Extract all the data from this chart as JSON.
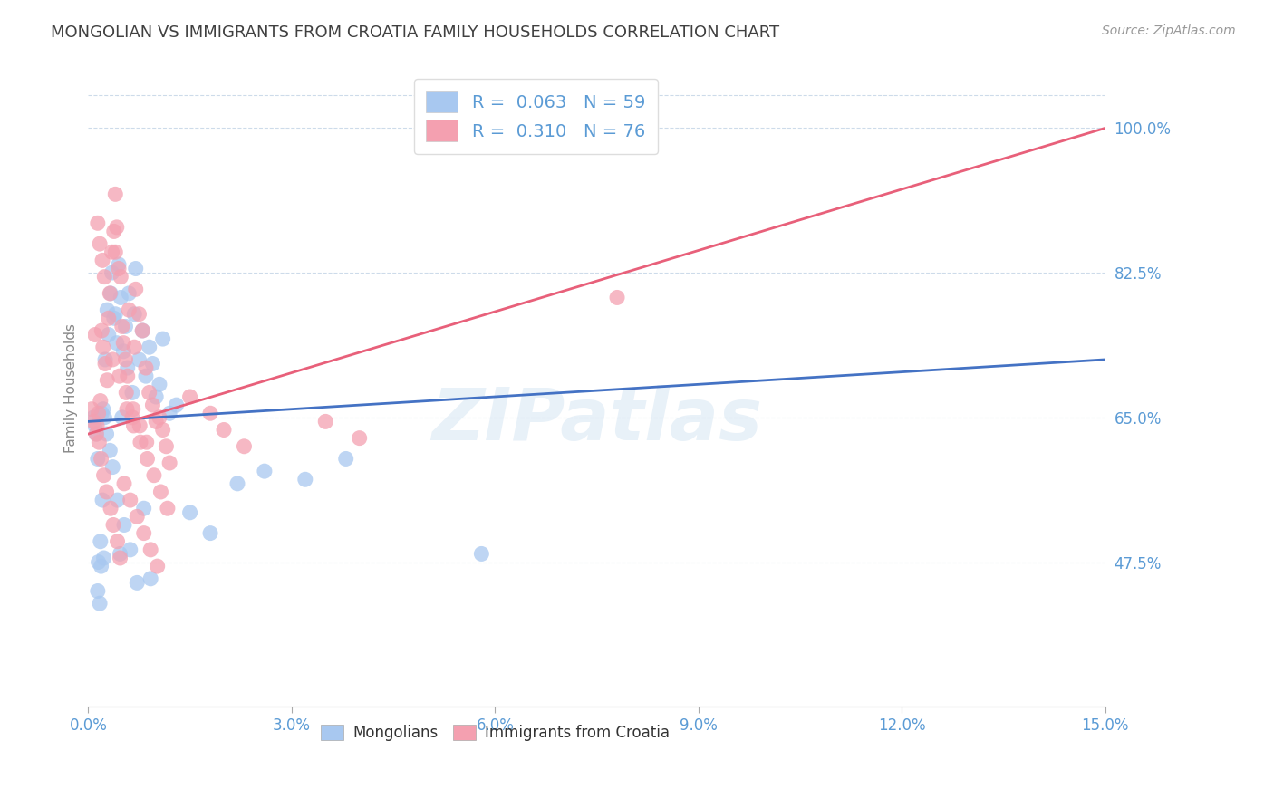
{
  "title": "MONGOLIAN VS IMMIGRANTS FROM CROATIA FAMILY HOUSEHOLDS CORRELATION CHART",
  "source": "Source: ZipAtlas.com",
  "ylabel": "Family Households",
  "yticks": [
    47.5,
    65.0,
    82.5,
    100.0
  ],
  "xticks": [
    0.0,
    3.0,
    6.0,
    9.0,
    12.0,
    15.0
  ],
  "xmin": 0.0,
  "xmax": 15.0,
  "ymin": 30.0,
  "ymax": 107.0,
  "legend_label1": "R =  0.063   N = 59",
  "legend_label2": "R =  0.310   N = 76",
  "color_mongolian": "#a8c8f0",
  "color_croatia": "#f4a0b0",
  "color_trend_mongolian": "#4472c4",
  "color_trend_croatia": "#e8607a",
  "color_axis_labels": "#5b9bd5",
  "color_title": "#404040",
  "background": "#ffffff",
  "mongolian_x": [
    0.08,
    0.12,
    0.15,
    0.18,
    0.2,
    0.22,
    0.25,
    0.28,
    0.3,
    0.33,
    0.35,
    0.38,
    0.4,
    0.42,
    0.45,
    0.48,
    0.5,
    0.52,
    0.55,
    0.58,
    0.6,
    0.65,
    0.68,
    0.7,
    0.75,
    0.8,
    0.85,
    0.9,
    0.95,
    1.0,
    1.05,
    1.1,
    1.2,
    1.3,
    1.5,
    1.8,
    2.2,
    2.6,
    3.2,
    3.8,
    0.1,
    0.14,
    0.17,
    0.21,
    0.24,
    0.27,
    0.32,
    0.36,
    0.43,
    0.47,
    0.53,
    0.62,
    0.72,
    0.82,
    0.92,
    0.14,
    0.19,
    0.23,
    5.8
  ],
  "mongolian_y": [
    65.0,
    63.0,
    47.5,
    50.0,
    65.5,
    66.0,
    72.0,
    78.0,
    75.0,
    80.0,
    82.5,
    77.0,
    77.5,
    74.0,
    83.5,
    79.5,
    65.0,
    73.0,
    76.0,
    71.0,
    80.0,
    68.0,
    77.5,
    83.0,
    72.0,
    75.5,
    70.0,
    73.5,
    71.5,
    67.5,
    69.0,
    74.5,
    65.5,
    66.5,
    53.5,
    51.0,
    57.0,
    58.5,
    57.5,
    60.0,
    64.0,
    44.0,
    42.5,
    55.0,
    65.0,
    63.0,
    61.0,
    59.0,
    55.0,
    48.5,
    52.0,
    49.0,
    45.0,
    54.0,
    45.5,
    60.0,
    47.0,
    48.0,
    48.5
  ],
  "croatia_x": [
    0.05,
    0.08,
    0.1,
    0.12,
    0.15,
    0.18,
    0.2,
    0.22,
    0.25,
    0.28,
    0.3,
    0.32,
    0.35,
    0.38,
    0.4,
    0.42,
    0.45,
    0.48,
    0.5,
    0.52,
    0.55,
    0.58,
    0.6,
    0.65,
    0.68,
    0.7,
    0.75,
    0.8,
    0.85,
    0.9,
    0.95,
    1.0,
    1.05,
    1.1,
    1.15,
    1.2,
    1.5,
    1.8,
    2.0,
    2.3,
    0.13,
    0.16,
    0.19,
    0.23,
    0.27,
    0.33,
    0.37,
    0.43,
    0.47,
    0.53,
    0.62,
    0.72,
    0.82,
    0.92,
    1.02,
    0.14,
    0.17,
    0.21,
    0.24,
    0.57,
    0.67,
    0.77,
    0.87,
    0.97,
    1.07,
    1.17,
    0.36,
    0.46,
    0.56,
    0.66,
    0.76,
    0.86,
    3.5,
    4.0,
    7.8,
    0.4
  ],
  "croatia_y": [
    66.0,
    64.5,
    75.0,
    63.0,
    65.5,
    67.0,
    75.5,
    73.5,
    71.5,
    69.5,
    77.0,
    80.0,
    85.0,
    87.5,
    85.0,
    88.0,
    83.0,
    82.0,
    76.0,
    74.0,
    72.0,
    70.0,
    78.0,
    65.0,
    73.5,
    80.5,
    77.5,
    75.5,
    71.0,
    68.0,
    66.5,
    64.5,
    65.0,
    63.5,
    61.5,
    59.5,
    67.5,
    65.5,
    63.5,
    61.5,
    64.0,
    62.0,
    60.0,
    58.0,
    56.0,
    54.0,
    52.0,
    50.0,
    48.0,
    57.0,
    55.0,
    53.0,
    51.0,
    49.0,
    47.0,
    88.5,
    86.0,
    84.0,
    82.0,
    66.0,
    64.0,
    62.0,
    60.0,
    58.0,
    56.0,
    54.0,
    72.0,
    70.0,
    68.0,
    66.0,
    64.0,
    62.0,
    64.5,
    62.5,
    79.5,
    92.0
  ],
  "trend_mongo_x0": 0.0,
  "trend_mongo_x1": 15.0,
  "trend_mongo_y0": 64.5,
  "trend_mongo_y1": 72.0,
  "trend_croatia_x0": 0.0,
  "trend_croatia_x1": 15.0,
  "trend_croatia_y0": 63.0,
  "trend_croatia_y1": 100.0
}
